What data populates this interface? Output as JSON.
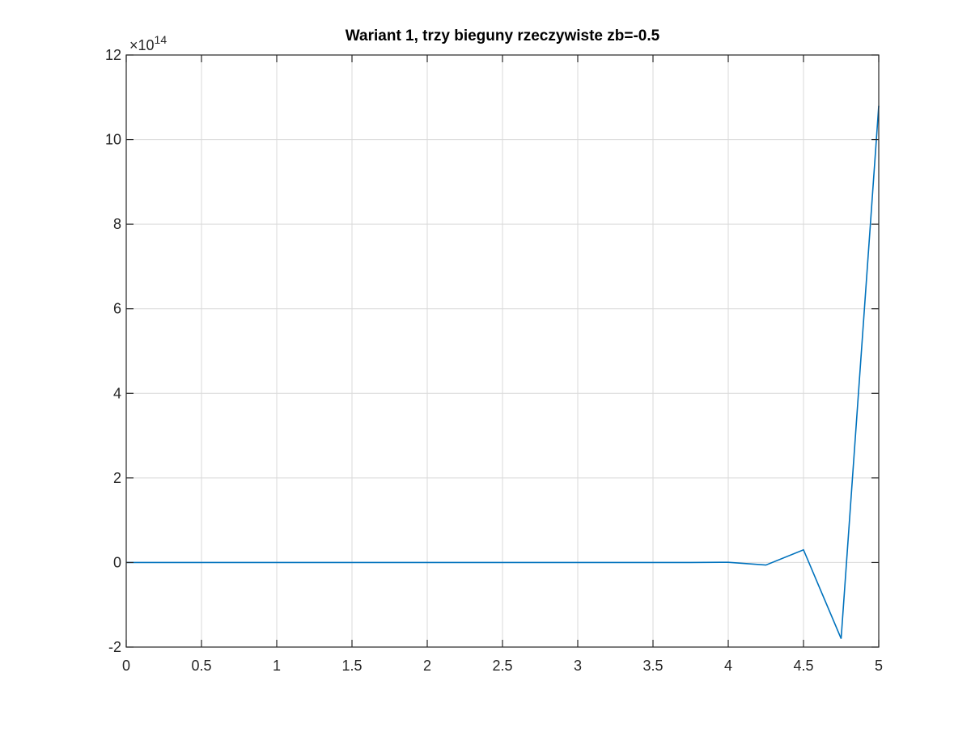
{
  "chart_data": {
    "type": "line",
    "title": "Wariant 1, trzy bieguny rzeczywiste zb=-0.5",
    "xlabel": "",
    "ylabel": "",
    "xlim": [
      0,
      5
    ],
    "ylim": [
      -2,
      12
    ],
    "y_exponent_label": "×10",
    "y_exponent_power": "14",
    "x_ticks": [
      0,
      0.5,
      1,
      1.5,
      2,
      2.5,
      3,
      3.5,
      4,
      4.5,
      5
    ],
    "x_tick_labels": [
      "0",
      "0.5",
      "1",
      "1.5",
      "2",
      "2.5",
      "3",
      "3.5",
      "4",
      "4.5",
      "5"
    ],
    "y_ticks": [
      -2,
      0,
      2,
      4,
      6,
      8,
      10,
      12
    ],
    "y_tick_labels": [
      "-2",
      "0",
      "2",
      "4",
      "6",
      "8",
      "10",
      "12"
    ],
    "grid": true,
    "series": [
      {
        "color": "#0072BD",
        "x": [
          0,
          0.25,
          0.5,
          0.75,
          1,
          1.25,
          1.5,
          1.75,
          2,
          2.25,
          2.5,
          2.75,
          3,
          3.25,
          3.5,
          3.75,
          4,
          4.25,
          4.5,
          4.75,
          5
        ],
        "y": [
          0,
          0,
          0,
          0,
          0,
          0,
          0,
          0,
          0,
          0,
          0,
          0,
          0,
          0,
          0,
          0,
          0.005,
          -0.06,
          0.3,
          -1.8,
          10.8
        ]
      }
    ]
  }
}
